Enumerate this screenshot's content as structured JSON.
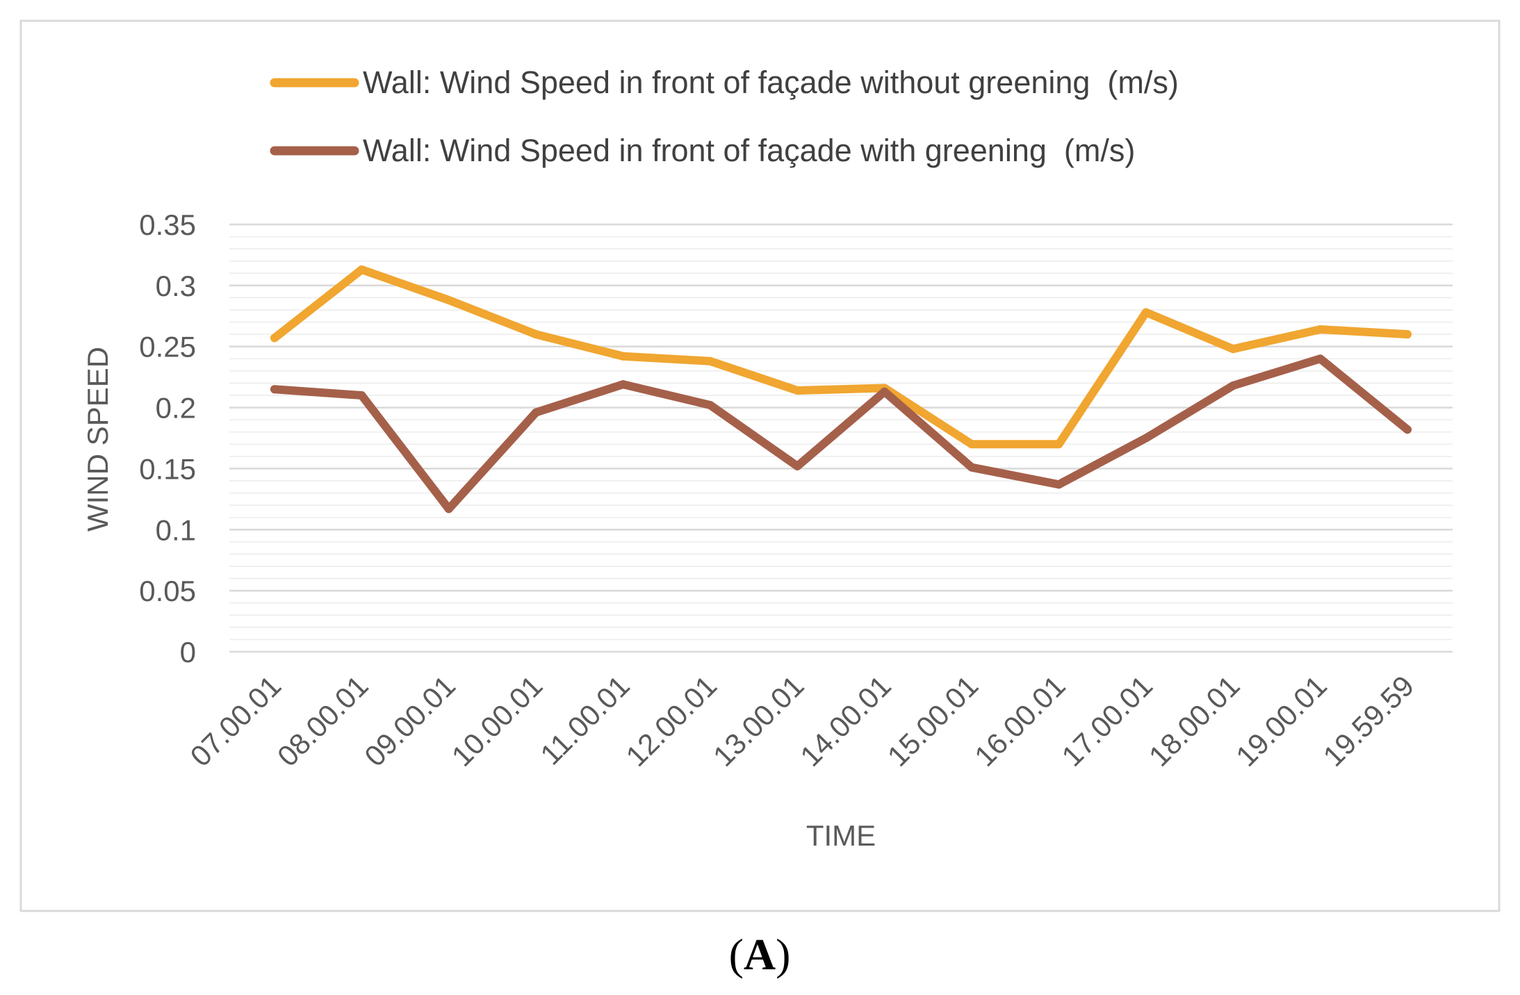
{
  "chart_data": {
    "type": "line",
    "categories": [
      "07.00.01",
      "08.00.01",
      "09.00.01",
      "10.00.01",
      "11.00.01",
      "12.00.01",
      "13.00.01",
      "14.00.01",
      "15.00.01",
      "16.00.01",
      "17.00.01",
      "18.00.01",
      "19.00.01",
      "19.59.59"
    ],
    "series": [
      {
        "name": "Wall: Wind Speed in front of façade without greening  (m/s)",
        "color": "#F0A630",
        "values": [
          0.257,
          0.313,
          0.288,
          0.26,
          0.242,
          0.238,
          0.214,
          0.216,
          0.17,
          0.17,
          0.278,
          0.248,
          0.264,
          0.26
        ]
      },
      {
        "name": "Wall: Wind Speed in front of façade with greening  (m/s)",
        "color": "#A5604A",
        "values": [
          0.215,
          0.21,
          0.117,
          0.196,
          0.219,
          0.202,
          0.152,
          0.213,
          0.151,
          0.137,
          0.175,
          0.218,
          0.24,
          0.182
        ]
      }
    ],
    "xlabel": "TIME",
    "ylabel": "WIND SPEED",
    "ylim": [
      0,
      0.35
    ],
    "y_ticks": [
      "0",
      "0.05",
      "0.1",
      "0.15",
      "0.2",
      "0.25",
      "0.3",
      "0.35"
    ],
    "y_minor_step": 0.01,
    "grid": true,
    "legend_position": "top"
  },
  "caption": {
    "open": "(",
    "letter": "A",
    "close": ")"
  }
}
